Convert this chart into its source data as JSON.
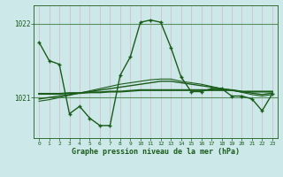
{
  "title": "Graphe pression niveau de la mer (hPa)",
  "bg_color": "#cce8e8",
  "grid_color_v": "#d4b8c0",
  "grid_color_h": "#5a9060",
  "line_color": "#1a5c1a",
  "xlim": [
    -0.5,
    23.5
  ],
  "ylim": [
    1020.45,
    1022.25
  ],
  "yticks": [
    1021.0,
    1022.0
  ],
  "xticks": [
    0,
    1,
    2,
    3,
    4,
    5,
    6,
    7,
    8,
    9,
    10,
    11,
    12,
    13,
    14,
    15,
    16,
    17,
    18,
    19,
    20,
    21,
    22,
    23
  ],
  "hours": [
    0,
    1,
    2,
    3,
    4,
    5,
    6,
    7,
    8,
    9,
    10,
    11,
    12,
    13,
    14,
    15,
    16,
    17,
    18,
    19,
    20,
    21,
    22,
    23
  ],
  "pressure_main": [
    1021.75,
    1021.5,
    1021.45,
    1020.78,
    1020.88,
    1020.72,
    1020.62,
    1020.62,
    1021.3,
    1021.55,
    1022.02,
    1022.05,
    1022.02,
    1021.68,
    1021.28,
    1021.08,
    1021.08,
    1021.12,
    1021.12,
    1021.02,
    1021.02,
    1020.98,
    1020.82,
    1021.05
  ],
  "pressure_smooth1": [
    1021.05,
    1021.05,
    1021.05,
    1021.06,
    1021.06,
    1021.07,
    1021.07,
    1021.08,
    1021.08,
    1021.09,
    1021.1,
    1021.1,
    1021.1,
    1021.1,
    1021.1,
    1021.1,
    1021.1,
    1021.1,
    1021.1,
    1021.1,
    1021.08,
    1021.08,
    1021.08,
    1021.08
  ],
  "pressure_smooth2": [
    1020.98,
    1021.0,
    1021.02,
    1021.04,
    1021.06,
    1021.08,
    1021.1,
    1021.12,
    1021.14,
    1021.16,
    1021.18,
    1021.2,
    1021.22,
    1021.22,
    1021.2,
    1021.18,
    1021.16,
    1021.14,
    1021.12,
    1021.1,
    1021.08,
    1021.06,
    1021.04,
    1021.06
  ],
  "pressure_smooth3": [
    1020.95,
    1020.97,
    1021.0,
    1021.03,
    1021.06,
    1021.09,
    1021.12,
    1021.15,
    1021.18,
    1021.2,
    1021.22,
    1021.24,
    1021.25,
    1021.25,
    1021.22,
    1021.2,
    1021.18,
    1021.15,
    1021.12,
    1021.1,
    1021.07,
    1021.04,
    1021.02,
    1021.04
  ]
}
